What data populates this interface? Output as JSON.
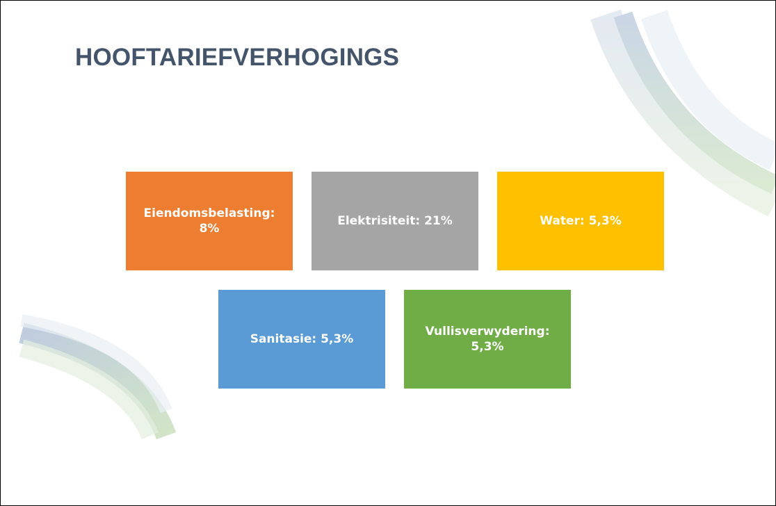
{
  "header": {
    "title": "HOOFTARIEFVERHOGINGS"
  },
  "boxes": [
    {
      "label": "Eiendomsbelasting: 8%",
      "color": "#ed7d31"
    },
    {
      "label": "Elektrisiteit: 21%",
      "color": "#a5a5a5"
    },
    {
      "label": "Water: 5,3%",
      "color": "#ffc000"
    },
    {
      "label": "Sanitasie: 5,3%",
      "color": "#5b9bd5"
    },
    {
      "label": "Vullisverwydering: 5,3%",
      "color": "#70ad47"
    }
  ]
}
